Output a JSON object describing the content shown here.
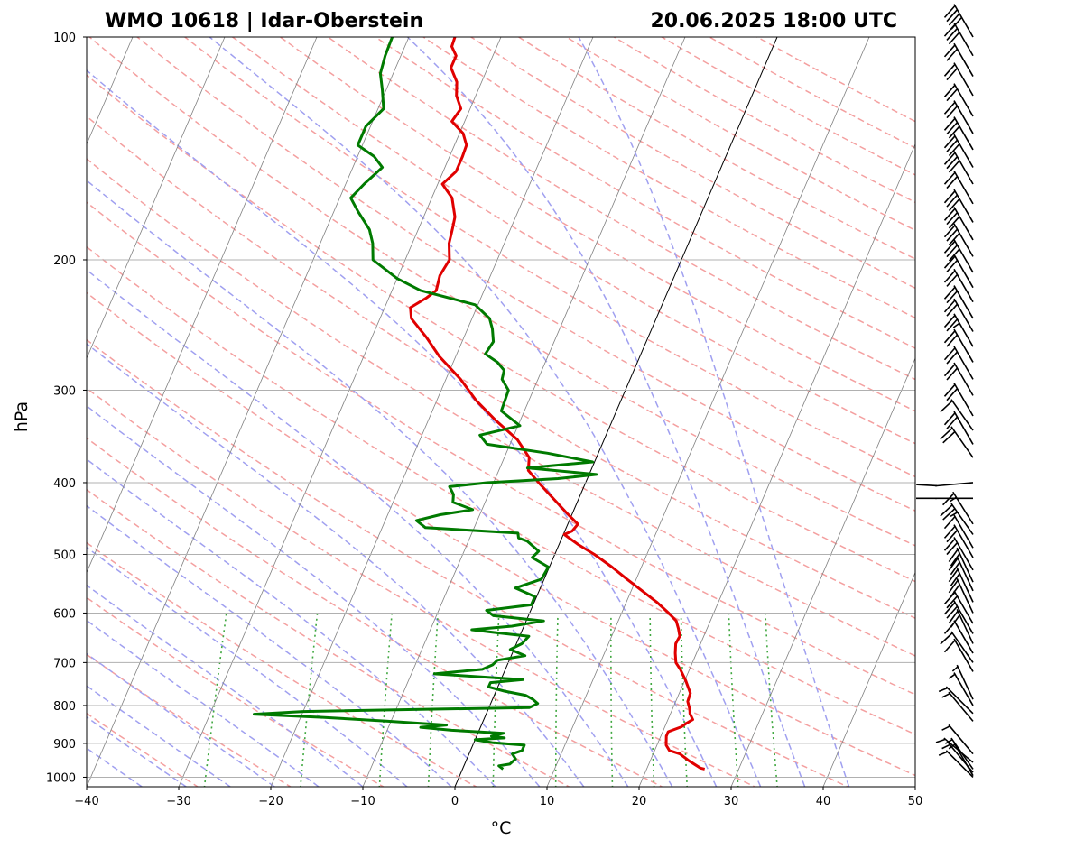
{
  "chart_data": {
    "type": "line",
    "chart_kind": "skew-T log-p diagram",
    "title_left": "WMO 10618 | Idar-Oberstein",
    "title_right": "20.06.2025 18:00 UTC",
    "xlabel": "°C",
    "ylabel": "hPa",
    "xlim": [
      -40,
      50
    ],
    "ylim": [
      1030,
      100
    ],
    "y_scale": "log",
    "x_ticks": [
      -40,
      -30,
      -20,
      -10,
      0,
      10,
      20,
      30,
      40,
      50
    ],
    "x_tick_labels": [
      "−40",
      "−30",
      "−20",
      "−10",
      "0",
      "10",
      "20",
      "30",
      "40",
      "50"
    ],
    "y_ticks": [
      1000,
      900,
      800,
      700,
      600,
      500,
      400,
      300,
      200,
      100
    ],
    "y_tick_labels": [
      "1000",
      "900",
      "800",
      "700",
      "600",
      "500",
      "400",
      "300",
      "200",
      "100"
    ],
    "grid": true,
    "skew_factor": 35,
    "colors": {
      "temperature": "#e00000",
      "dewpoint": "#007a00",
      "dry_adiabats": "#f4a0a0",
      "moist_adiabats": "#a0a0f0",
      "mixing_ratio": "#40a840",
      "isotherms": "#808080",
      "zero_isotherm": "#000000"
    },
    "series": [
      {
        "name": "temperature",
        "points": [
          [
            975,
            26.3
          ],
          [
            972,
            25.8
          ],
          [
            950,
            24.2
          ],
          [
            930,
            22.9
          ],
          [
            920,
            21.6
          ],
          [
            905,
            21.0
          ],
          [
            880,
            20.6
          ],
          [
            868,
            20.6
          ],
          [
            855,
            21.8
          ],
          [
            845,
            22.2
          ],
          [
            836,
            22.7
          ],
          [
            820,
            22.1
          ],
          [
            810,
            21.9
          ],
          [
            790,
            21.3
          ],
          [
            770,
            21.2
          ],
          [
            740,
            20.1
          ],
          [
            715,
            19.0
          ],
          [
            700,
            18.2
          ],
          [
            680,
            17.7
          ],
          [
            660,
            17.3
          ],
          [
            645,
            17.4
          ],
          [
            630,
            16.9
          ],
          [
            615,
            16.3
          ],
          [
            600,
            15.1
          ],
          [
            580,
            13.3
          ],
          [
            560,
            11.2
          ],
          [
            540,
            9.0
          ],
          [
            520,
            6.8
          ],
          [
            500,
            4.3
          ],
          [
            485,
            2.1
          ],
          [
            470,
            0.1
          ],
          [
            465,
            0.8
          ],
          [
            455,
            1.1
          ],
          [
            440,
            -0.6
          ],
          [
            420,
            -2.8
          ],
          [
            400,
            -5.1
          ],
          [
            385,
            -6.8
          ],
          [
            370,
            -7.3
          ],
          [
            350,
            -9.4
          ],
          [
            330,
            -12.6
          ],
          [
            310,
            -15.7
          ],
          [
            290,
            -18.4
          ],
          [
            270,
            -21.8
          ],
          [
            255,
            -24.0
          ],
          [
            240,
            -26.6
          ],
          [
            232,
            -27.2
          ],
          [
            225,
            -25.9
          ],
          [
            220,
            -25.2
          ],
          [
            210,
            -25.5
          ],
          [
            200,
            -25.2
          ],
          [
            190,
            -26.0
          ],
          [
            182,
            -26.3
          ],
          [
            175,
            -26.6
          ],
          [
            165,
            -27.8
          ],
          [
            158,
            -29.5
          ],
          [
            152,
            -28.6
          ],
          [
            145,
            -28.6
          ],
          [
            140,
            -28.7
          ],
          [
            135,
            -29.6
          ],
          [
            130,
            -31.4
          ],
          [
            125,
            -31.0
          ],
          [
            120,
            -32.1
          ],
          [
            115,
            -32.7
          ],
          [
            110,
            -34.0
          ],
          [
            106,
            -34.0
          ],
          [
            103,
            -34.9
          ],
          [
            100,
            -35.0
          ]
        ]
      },
      {
        "name": "dewpoint",
        "points": [
          [
            975,
            4.4
          ],
          [
            965,
            3.8
          ],
          [
            960,
            4.9
          ],
          [
            945,
            5.3
          ],
          [
            930,
            4.7
          ],
          [
            920,
            5.6
          ],
          [
            905,
            5.6
          ],
          [
            898,
            2.0
          ],
          [
            890,
            0.0
          ],
          [
            885,
            3.1
          ],
          [
            880,
            1.6
          ],
          [
            872,
            2.8
          ],
          [
            864,
            -3.0
          ],
          [
            856,
            -6.5
          ],
          [
            850,
            -3.8
          ],
          [
            840,
            -10.5
          ],
          [
            830,
            -17.6
          ],
          [
            822,
            -25.2
          ],
          [
            815,
            -20.0
          ],
          [
            805,
            4.4
          ],
          [
            795,
            5.1
          ],
          [
            785,
            4.4
          ],
          [
            775,
            3.4
          ],
          [
            765,
            0.9
          ],
          [
            755,
            -1.0
          ],
          [
            745,
            -1.0
          ],
          [
            738,
            2.4
          ],
          [
            725,
            -7.5
          ],
          [
            715,
            -2.5
          ],
          [
            705,
            -1.6
          ],
          [
            695,
            -1.3
          ],
          [
            685,
            1.5
          ],
          [
            672,
            -0.4
          ],
          [
            660,
            0.6
          ],
          [
            645,
            1.0
          ],
          [
            638,
            -2.7
          ],
          [
            632,
            -5.5
          ],
          [
            625,
            -1.3
          ],
          [
            615,
            1.9
          ],
          [
            605,
            -3.8
          ],
          [
            595,
            -4.8
          ],
          [
            585,
            -0.2
          ],
          [
            570,
            -0.2
          ],
          [
            555,
            -2.7
          ],
          [
            540,
            -0.3
          ],
          [
            520,
            -0.1
          ],
          [
            505,
            -2.3
          ],
          [
            495,
            -1.9
          ],
          [
            480,
            -3.6
          ],
          [
            475,
            -4.7
          ],
          [
            468,
            -5.0
          ],
          [
            460,
            -15.3
          ],
          [
            450,
            -16.6
          ],
          [
            442,
            -14.3
          ],
          [
            435,
            -11.0
          ],
          [
            425,
            -13.5
          ],
          [
            415,
            -13.8
          ],
          [
            405,
            -14.6
          ],
          [
            400,
            -10.7
          ],
          [
            395,
            -3.2
          ],
          [
            390,
            0.8
          ],
          [
            382,
            -7.0
          ],
          [
            375,
            -0.2
          ],
          [
            365,
            -5.5
          ],
          [
            355,
            -12.5
          ],
          [
            345,
            -13.7
          ],
          [
            335,
            -9.8
          ],
          [
            320,
            -12.5
          ],
          [
            300,
            -12.7
          ],
          [
            290,
            -13.9
          ],
          [
            282,
            -14.1
          ],
          [
            275,
            -15.2
          ],
          [
            268,
            -16.9
          ],
          [
            258,
            -16.6
          ],
          [
            248,
            -17.3
          ],
          [
            240,
            -18.1
          ],
          [
            230,
            -20.3
          ],
          [
            220,
            -26.9
          ],
          [
            212,
            -30.0
          ],
          [
            200,
            -33.5
          ],
          [
            190,
            -34.3
          ],
          [
            182,
            -35.3
          ],
          [
            172,
            -37.4
          ],
          [
            165,
            -38.8
          ],
          [
            158,
            -38.0
          ],
          [
            150,
            -36.8
          ],
          [
            145,
            -38.2
          ],
          [
            140,
            -40.5
          ],
          [
            132,
            -40.5
          ],
          [
            125,
            -39.4
          ],
          [
            118,
            -40.4
          ],
          [
            112,
            -41.4
          ],
          [
            106,
            -41.7
          ],
          [
            100,
            -41.8
          ]
        ]
      }
    ],
    "wind_barbs_visible": true
  }
}
